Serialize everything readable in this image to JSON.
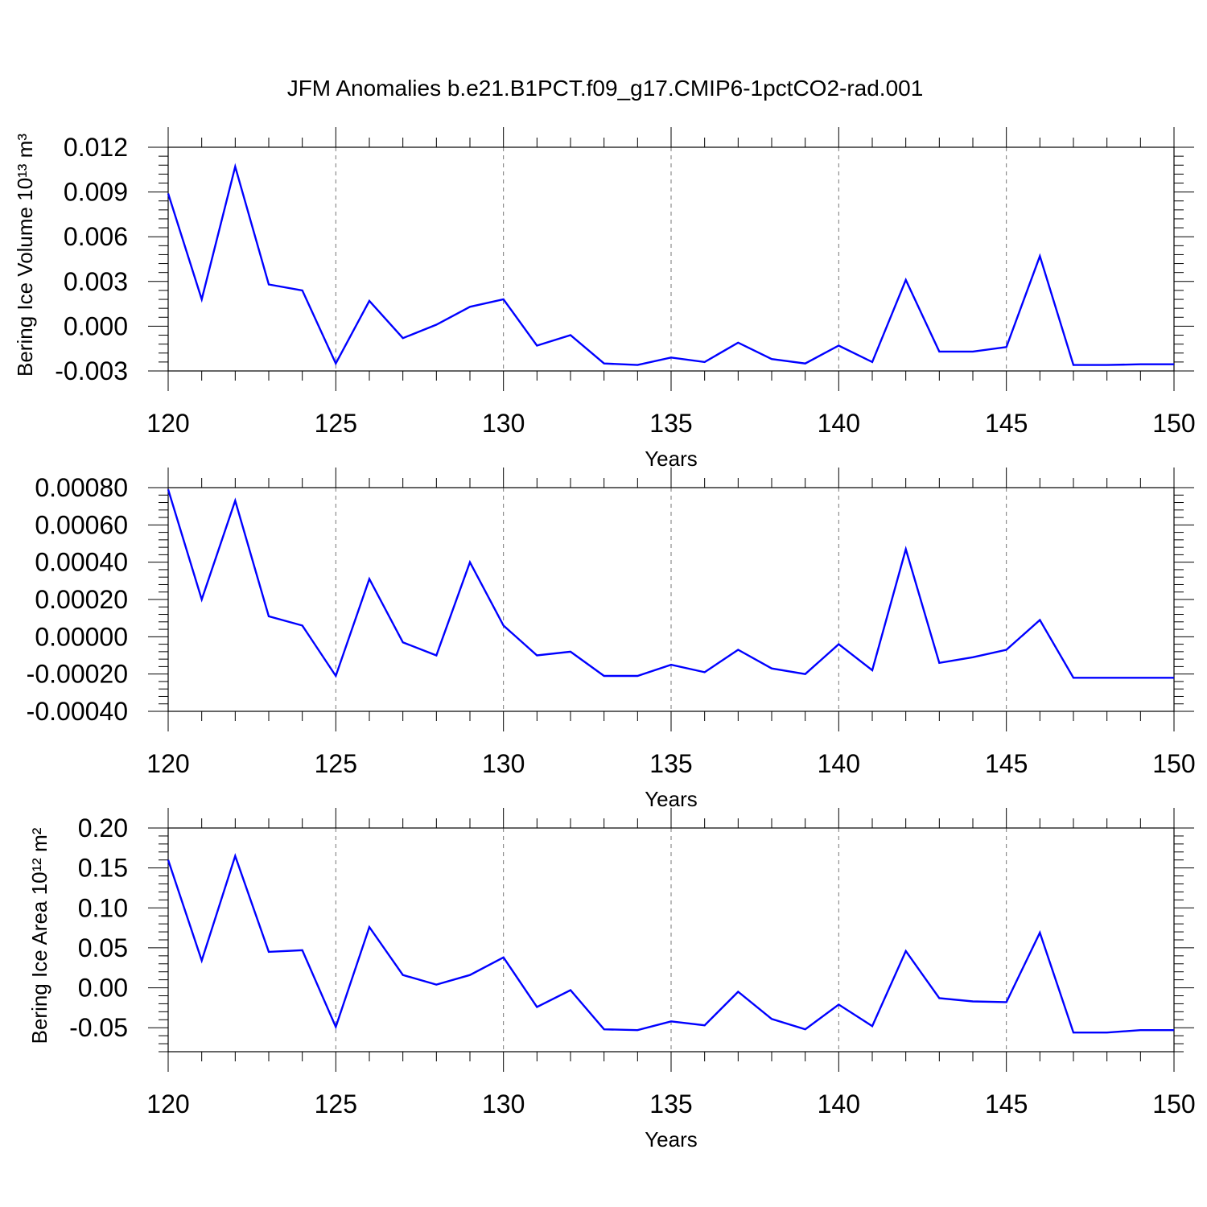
{
  "page_title": "JFM Anomalies b.e21.B1PCT.f09_g17.CMIP6-1pctCO2-rad.001",
  "colors": {
    "line": "#0000ff",
    "grid": "#777777",
    "axis": "#000000"
  },
  "chart_data": [
    {
      "type": "line",
      "title": "",
      "xlabel": "Years",
      "ylabel": "Bering Ice Volume 10¹³ m³",
      "xlim": [
        120,
        150
      ],
      "ylim": [
        -0.003,
        0.012
      ],
      "xticks": [
        120,
        125,
        130,
        135,
        140,
        145,
        150
      ],
      "yticks": [
        -0.003,
        0.0,
        0.003,
        0.006,
        0.009,
        0.012
      ],
      "ytick_labels": [
        "-0.003",
        "0.000",
        "0.003",
        "0.006",
        "0.009",
        "0.012"
      ],
      "grid": "vertical dashed at major x ticks",
      "series": [
        {
          "x": [
            120,
            121,
            122,
            123,
            124,
            125,
            126,
            127,
            128,
            129,
            130,
            131,
            132,
            133,
            134,
            135,
            136,
            137,
            138,
            139,
            140,
            141,
            142,
            143,
            144,
            145,
            146,
            147,
            148,
            149,
            150
          ],
          "y": [
            0.0089,
            0.0018,
            0.0107,
            0.0028,
            0.0024,
            -0.0025,
            0.0017,
            -0.0008,
            0.0001,
            0.0013,
            0.0018,
            -0.0013,
            -0.0006,
            -0.0025,
            -0.0026,
            -0.0021,
            -0.0024,
            -0.0011,
            -0.0022,
            -0.0025,
            -0.0013,
            -0.0024,
            0.0031,
            -0.0017,
            -0.0017,
            -0.0014,
            0.0047,
            -0.0026,
            -0.0026,
            -0.00255,
            -0.00255
          ]
        }
      ]
    },
    {
      "type": "line",
      "title": "",
      "xlabel": "Years",
      "ylabel": "",
      "xlim": [
        120,
        150
      ],
      "ylim": [
        -0.0004,
        0.0008
      ],
      "xticks": [
        120,
        125,
        130,
        135,
        140,
        145,
        150
      ],
      "yticks": [
        -0.0004,
        -0.0002,
        0.0,
        0.0002,
        0.0004,
        0.0006,
        0.0008
      ],
      "ytick_labels": [
        "-0.00040",
        "-0.00020",
        "0.00000",
        "0.00020",
        "0.00040",
        "0.00060",
        "0.00080"
      ],
      "grid": "vertical dashed at major x ticks",
      "series": [
        {
          "x": [
            120,
            121,
            122,
            123,
            124,
            125,
            126,
            127,
            128,
            129,
            130,
            131,
            132,
            133,
            134,
            135,
            136,
            137,
            138,
            139,
            140,
            141,
            142,
            143,
            144,
            145,
            146,
            147,
            148,
            149,
            150
          ],
          "y": [
            0.00079,
            0.0002,
            0.00073,
            0.00011,
            6e-05,
            -0.00021,
            0.00031,
            -3e-05,
            -0.0001,
            0.0004,
            6e-05,
            -0.0001,
            -8e-05,
            -0.00021,
            -0.00021,
            -0.00015,
            -0.00019,
            -7e-05,
            -0.00017,
            -0.0002,
            -4e-05,
            -0.00018,
            0.00047,
            -0.00014,
            -0.00011,
            -7e-05,
            9e-05,
            -0.00022,
            -0.00022,
            -0.00022,
            -0.00022
          ]
        }
      ]
    },
    {
      "type": "line",
      "title": "",
      "xlabel": "Years",
      "ylabel": "Bering Ice Area 10¹² m²",
      "xlim": [
        120,
        150
      ],
      "ylim": [
        -0.08,
        0.2
      ],
      "xticks": [
        120,
        125,
        130,
        135,
        140,
        145,
        150
      ],
      "yticks": [
        -0.05,
        0.0,
        0.05,
        0.1,
        0.15,
        0.2
      ],
      "ytick_labels": [
        "-0.05",
        "0.00",
        "0.05",
        "0.10",
        "0.15",
        "0.20"
      ],
      "grid": "vertical dashed at major x ticks",
      "series": [
        {
          "x": [
            120,
            121,
            122,
            123,
            124,
            125,
            126,
            127,
            128,
            129,
            130,
            131,
            132,
            133,
            134,
            135,
            136,
            137,
            138,
            139,
            140,
            141,
            142,
            143,
            144,
            145,
            146,
            147,
            148,
            149,
            150
          ],
          "y": [
            0.16,
            0.034,
            0.165,
            0.045,
            0.047,
            -0.049,
            0.076,
            0.016,
            0.004,
            0.016,
            0.038,
            -0.024,
            -0.003,
            -0.052,
            -0.053,
            -0.042,
            -0.047,
            -0.005,
            -0.039,
            -0.052,
            -0.021,
            -0.048,
            0.046,
            -0.013,
            -0.017,
            -0.018,
            0.069,
            -0.056,
            -0.056,
            -0.053,
            -0.053
          ]
        }
      ]
    }
  ]
}
